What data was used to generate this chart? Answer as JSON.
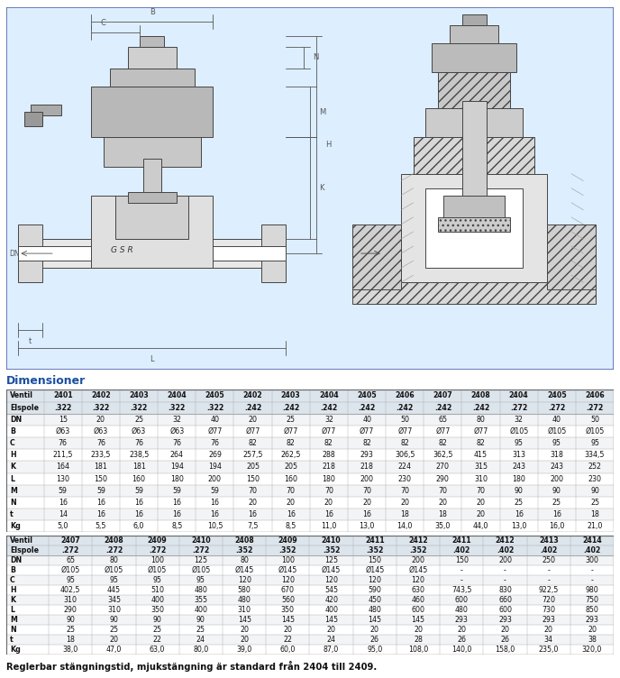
{
  "title_dimensioner": "Dimensioner",
  "table1_header": [
    "Ventil",
    "2401",
    "2402",
    "2403",
    "2404",
    "2405",
    "2402",
    "2403",
    "2404",
    "2405",
    "2406",
    "2407",
    "2408",
    "2404",
    "2405",
    "2406"
  ],
  "table1_row2": [
    "Elspole",
    ".322",
    ".322",
    ".322",
    ".322",
    ".322",
    ".242",
    ".242",
    ".242",
    ".242",
    ".242",
    ".242",
    ".242",
    ".272",
    ".272",
    ".272"
  ],
  "table1_rows": [
    [
      "DN",
      "15",
      "20",
      "25",
      "32",
      "40",
      "20",
      "25",
      "32",
      "40",
      "50",
      "65",
      "80",
      "32",
      "40",
      "50"
    ],
    [
      "B",
      "Ø63",
      "Ø63",
      "Ø63",
      "Ø63",
      "Ø77",
      "Ø77",
      "Ø77",
      "Ø77",
      "Ø77",
      "Ø77",
      "Ø77",
      "Ø77",
      "Ø105",
      "Ø105",
      "Ø105"
    ],
    [
      "C",
      "76",
      "76",
      "76",
      "76",
      "76",
      "82",
      "82",
      "82",
      "82",
      "82",
      "82",
      "82",
      "95",
      "95",
      "95"
    ],
    [
      "H",
      "211,5",
      "233,5",
      "238,5",
      "264",
      "269",
      "257,5",
      "262,5",
      "288",
      "293",
      "306,5",
      "362,5",
      "415",
      "313",
      "318",
      "334,5"
    ],
    [
      "K",
      "164",
      "181",
      "181",
      "194",
      "194",
      "205",
      "205",
      "218",
      "218",
      "224",
      "270",
      "315",
      "243",
      "243",
      "252"
    ],
    [
      "L",
      "130",
      "150",
      "160",
      "180",
      "200",
      "150",
      "160",
      "180",
      "200",
      "230",
      "290",
      "310",
      "180",
      "200",
      "230"
    ],
    [
      "M",
      "59",
      "59",
      "59",
      "59",
      "59",
      "70",
      "70",
      "70",
      "70",
      "70",
      "70",
      "70",
      "90",
      "90",
      "90"
    ],
    [
      "N",
      "16",
      "16",
      "16",
      "16",
      "16",
      "20",
      "20",
      "20",
      "20",
      "20",
      "20",
      "20",
      "25",
      "25",
      "25"
    ],
    [
      "t",
      "14",
      "16",
      "16",
      "16",
      "16",
      "16",
      "16",
      "16",
      "16",
      "18",
      "18",
      "20",
      "16",
      "16",
      "18"
    ],
    [
      "Kg",
      "5,0",
      "5,5",
      "6,0",
      "8,5",
      "10,5",
      "7,5",
      "8,5",
      "11,0",
      "13,0",
      "14,0",
      "35,0",
      "44,0",
      "13,0",
      "16,0",
      "21,0"
    ]
  ],
  "table2_header": [
    "Ventil",
    "2407",
    "2408",
    "2409",
    "2410",
    "2408",
    "2409",
    "2410",
    "2411",
    "2412",
    "2411",
    "2412",
    "2413",
    "2414"
  ],
  "table2_row2": [
    "Elspole",
    ".272",
    ".272",
    ".272",
    ".272",
    ".352",
    ".352",
    ".352",
    ".352",
    ".352",
    ".402",
    ".402",
    ".402",
    ".402"
  ],
  "table2_rows": [
    [
      "DN",
      "65",
      "80",
      "100",
      "125",
      "80",
      "100",
      "125",
      "150",
      "200",
      "150",
      "200",
      "250",
      "300"
    ],
    [
      "B",
      "Ø105",
      "Ø105",
      "Ø105",
      "Ø105",
      "Ø145",
      "Ø145",
      "Ø145",
      "Ø145",
      "Ø145",
      "-",
      "-",
      "-",
      "-"
    ],
    [
      "C",
      "95",
      "95",
      "95",
      "95",
      "120",
      "120",
      "120",
      "120",
      "120",
      "-",
      "-",
      "-",
      "-"
    ],
    [
      "H",
      "402,5",
      "445",
      "510",
      "480",
      "580",
      "670",
      "545",
      "590",
      "630",
      "743,5",
      "830",
      "922,5",
      "980"
    ],
    [
      "K",
      "310",
      "345",
      "400",
      "355",
      "480",
      "560",
      "420",
      "450",
      "460",
      "600",
      "660",
      "720",
      "750"
    ],
    [
      "L",
      "290",
      "310",
      "350",
      "400",
      "310",
      "350",
      "400",
      "480",
      "600",
      "480",
      "600",
      "730",
      "850"
    ],
    [
      "M",
      "90",
      "90",
      "90",
      "90",
      "145",
      "145",
      "145",
      "145",
      "145",
      "293",
      "293",
      "293",
      "293"
    ],
    [
      "N",
      "25",
      "25",
      "25",
      "25",
      "20",
      "20",
      "20",
      "20",
      "20",
      "20",
      "20",
      "20",
      "20"
    ],
    [
      "t",
      "18",
      "20",
      "22",
      "24",
      "20",
      "22",
      "24",
      "26",
      "28",
      "26",
      "26",
      "34",
      "38"
    ],
    [
      "Kg",
      "38,0",
      "47,0",
      "63,0",
      "80,0",
      "39,0",
      "60,0",
      "87,0",
      "95,0",
      "108,0",
      "140,0",
      "158,0",
      "235,0",
      "320,0"
    ]
  ],
  "footnote": "Reglerbar stängningstid, mjukstängning är standard från 2404 till 2409.",
  "title_color": "#1a4fa0",
  "line_color": "#aaaaaa",
  "draw_line_color": "#444444",
  "bg_color": "#ffffff",
  "diagram_bg": "#ddeeff",
  "table_border": "#666666",
  "header_bg": "#dce4ec"
}
